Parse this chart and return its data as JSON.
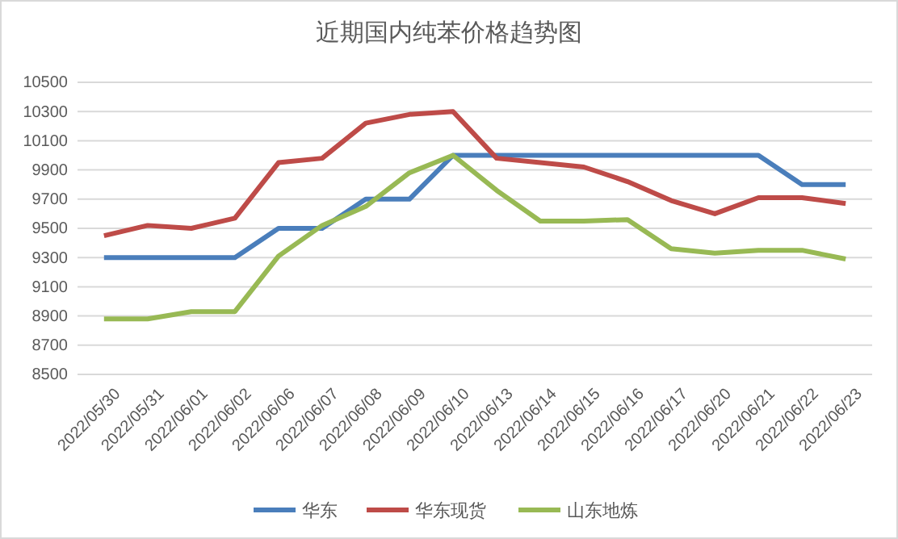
{
  "chart_data": {
    "type": "line",
    "title": "近期国内纯苯价格趋势图",
    "categories": [
      "2022/05/30",
      "2022/05/31",
      "2022/06/01",
      "2022/06/02",
      "2022/06/06",
      "2022/06/07",
      "2022/06/08",
      "2022/06/09",
      "2022/06/10",
      "2022/06/13",
      "2022/06/14",
      "2022/06/15",
      "2022/06/16",
      "2022/06/17",
      "2022/06/20",
      "2022/06/21",
      "2022/06/22",
      "2022/06/23"
    ],
    "series": [
      {
        "name": "华东",
        "color": "#4a7ebb",
        "values": [
          9300,
          9300,
          9300,
          9300,
          9500,
          9500,
          9700,
          9700,
          10000,
          10000,
          10000,
          10000,
          10000,
          10000,
          10000,
          10000,
          9800,
          9800
        ]
      },
      {
        "name": "华东现货",
        "color": "#be4b48",
        "values": [
          9450,
          9520,
          9500,
          9570,
          9950,
          9980,
          10220,
          10280,
          10300,
          9980,
          9950,
          9920,
          9820,
          9690,
          9600,
          9710,
          9710,
          9670
        ]
      },
      {
        "name": "山东地炼",
        "color": "#98b954",
        "values": [
          8880,
          8880,
          8930,
          8930,
          9310,
          9520,
          9650,
          9880,
          10000,
          9760,
          9550,
          9550,
          9560,
          9360,
          9330,
          9350,
          9350,
          9290
        ]
      }
    ],
    "ylim": [
      8500,
      10500
    ],
    "yticks": [
      8500,
      8700,
      8900,
      9100,
      9300,
      9500,
      9700,
      9900,
      10100,
      10300,
      10500
    ],
    "grid": "y",
    "legend": "bottom",
    "marker": "none",
    "line_style": "solid"
  }
}
